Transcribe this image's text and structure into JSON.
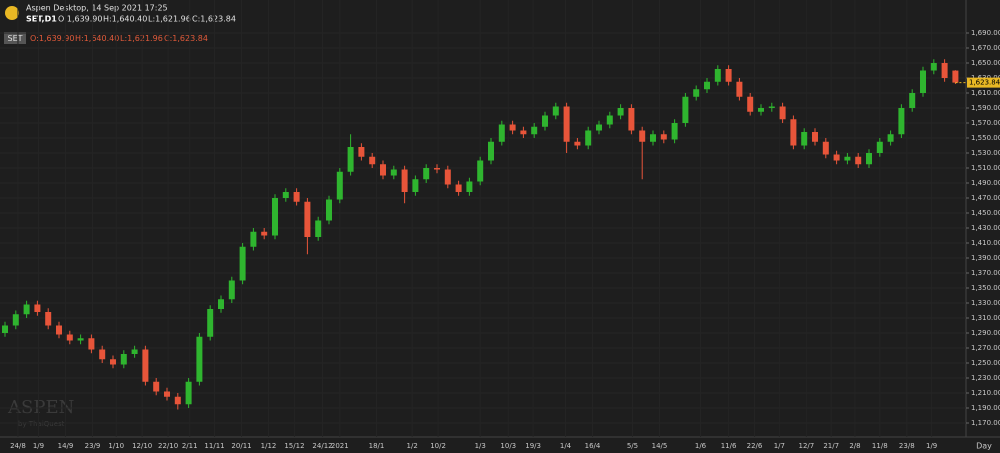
{
  "window": {
    "title": "Aspen Desktop, 14 Sep 2021 17:25",
    "symbol": "SET,D1",
    "badge": "SET",
    "ohlc": [
      "O:1,639.90",
      "H:1,640.40",
      "L:1,621.96",
      "C:1,623.84"
    ]
  },
  "watermark": {
    "brand": "ASPEN",
    "by": "by ThaiQuest"
  },
  "chart_data": {
    "type": "candlestick",
    "up_color": "#2fb52f",
    "down_color": "#e8553a",
    "grid": true,
    "open": [
      1290,
      1300,
      1315,
      1328,
      1318,
      1300,
      1288,
      1280,
      1283,
      1268,
      1255,
      1248,
      1262,
      1268,
      1225,
      1212,
      1205,
      1195,
      1225,
      1285,
      1322,
      1335,
      1360,
      1405,
      1425,
      1420,
      1470,
      1478,
      1465,
      1418,
      1440,
      1468,
      1505,
      1538,
      1525,
      1515,
      1500,
      1508,
      1478,
      1495,
      1510,
      1508,
      1488,
      1478,
      1492,
      1520,
      1545,
      1568,
      1560,
      1555,
      1565,
      1580,
      1592,
      1545,
      1540,
      1560,
      1568,
      1580,
      1590,
      1560,
      1545,
      1555,
      1548,
      1570,
      1605,
      1615,
      1625,
      1642,
      1625,
      1605,
      1585,
      1590,
      1592,
      1575,
      1540,
      1558,
      1545,
      1528,
      1520,
      1525,
      1515,
      1530,
      1545,
      1555,
      1590,
      1610,
      1640,
      1650,
      1639.9
    ],
    "high": [
      1305,
      1320,
      1333,
      1333,
      1323,
      1305,
      1293,
      1288,
      1288,
      1273,
      1260,
      1267,
      1273,
      1273,
      1230,
      1217,
      1210,
      1230,
      1290,
      1327,
      1340,
      1365,
      1410,
      1430,
      1430,
      1475,
      1483,
      1483,
      1470,
      1445,
      1473,
      1510,
      1555,
      1543,
      1530,
      1520,
      1513,
      1513,
      1500,
      1515,
      1515,
      1513,
      1493,
      1497,
      1525,
      1550,
      1573,
      1573,
      1565,
      1570,
      1585,
      1597,
      1597,
      1550,
      1565,
      1573,
      1585,
      1595,
      1595,
      1565,
      1560,
      1560,
      1575,
      1610,
      1620,
      1630,
      1647,
      1647,
      1630,
      1610,
      1595,
      1597,
      1597,
      1580,
      1563,
      1563,
      1550,
      1533,
      1530,
      1530,
      1535,
      1550,
      1560,
      1595,
      1615,
      1645,
      1655,
      1655,
      1640.4
    ],
    "low": [
      1285,
      1295,
      1310,
      1313,
      1295,
      1283,
      1275,
      1275,
      1263,
      1250,
      1243,
      1243,
      1257,
      1220,
      1207,
      1200,
      1188,
      1190,
      1220,
      1280,
      1317,
      1330,
      1355,
      1400,
      1415,
      1415,
      1465,
      1460,
      1395,
      1413,
      1435,
      1463,
      1500,
      1520,
      1510,
      1495,
      1495,
      1463,
      1473,
      1490,
      1503,
      1483,
      1473,
      1473,
      1487,
      1515,
      1540,
      1555,
      1550,
      1550,
      1560,
      1575,
      1530,
      1535,
      1535,
      1555,
      1563,
      1575,
      1555,
      1495,
      1540,
      1543,
      1543,
      1565,
      1600,
      1610,
      1620,
      1620,
      1600,
      1580,
      1580,
      1585,
      1570,
      1535,
      1535,
      1540,
      1523,
      1515,
      1515,
      1510,
      1510,
      1525,
      1540,
      1550,
      1585,
      1605,
      1635,
      1625,
      1621.96
    ],
    "close": [
      1300,
      1315,
      1328,
      1318,
      1300,
      1288,
      1280,
      1283,
      1268,
      1255,
      1248,
      1262,
      1268,
      1225,
      1212,
      1205,
      1195,
      1225,
      1285,
      1322,
      1335,
      1360,
      1405,
      1425,
      1420,
      1470,
      1478,
      1465,
      1418,
      1440,
      1468,
      1505,
      1538,
      1525,
      1515,
      1500,
      1508,
      1478,
      1495,
      1510,
      1508,
      1488,
      1478,
      1492,
      1520,
      1545,
      1568,
      1560,
      1555,
      1565,
      1580,
      1592,
      1545,
      1540,
      1560,
      1568,
      1580,
      1590,
      1560,
      1545,
      1555,
      1548,
      1570,
      1605,
      1615,
      1625,
      1642,
      1625,
      1605,
      1585,
      1590,
      1592,
      1575,
      1540,
      1558,
      1545,
      1528,
      1520,
      1525,
      1515,
      1530,
      1545,
      1555,
      1590,
      1610,
      1640,
      1650,
      1630,
      1623.84
    ],
    "last_price": {
      "value": 1623.84,
      "label": "1,623.84"
    },
    "ylim": [
      1160,
      1700
    ],
    "yticks": [
      {
        "value": 1170,
        "label": "1,170.00"
      },
      {
        "value": 1190,
        "label": "1,190.00"
      },
      {
        "value": 1210,
        "label": "1,210.00"
      },
      {
        "value": 1230,
        "label": "1,230.00"
      },
      {
        "value": 1250,
        "label": "1,250.00"
      },
      {
        "value": 1270,
        "label": "1,270.00"
      },
      {
        "value": 1290,
        "label": "1,290.00"
      },
      {
        "value": 1310,
        "label": "1,310.00"
      },
      {
        "value": 1330,
        "label": "1,330.00"
      },
      {
        "value": 1350,
        "label": "1,350.00"
      },
      {
        "value": 1370,
        "label": "1,370.00"
      },
      {
        "value": 1390,
        "label": "1,390.00"
      },
      {
        "value": 1410,
        "label": "1,410.00"
      },
      {
        "value": 1430,
        "label": "1,430.00"
      },
      {
        "value": 1450,
        "label": "1,450.00"
      },
      {
        "value": 1470,
        "label": "1,470.00"
      },
      {
        "value": 1490,
        "label": "1,490.00"
      },
      {
        "value": 1510,
        "label": "1,510.00"
      },
      {
        "value": 1530,
        "label": "1,530.00"
      },
      {
        "value": 1550,
        "label": "1,550.00"
      },
      {
        "value": 1570,
        "label": "1,570.00"
      },
      {
        "value": 1590,
        "label": "1,590.00"
      },
      {
        "value": 1610,
        "label": "1,610.00"
      },
      {
        "value": 1630,
        "label": "1,630.00"
      },
      {
        "value": 1650,
        "label": "1,650.00"
      },
      {
        "value": 1670,
        "label": "1,670.00"
      },
      {
        "value": 1690,
        "label": "1,690.00"
      }
    ],
    "xticks": [
      {
        "value": 1.2,
        "label": "24/8"
      },
      {
        "value": 3.1,
        "label": "1/9"
      },
      {
        "value": 5.6,
        "label": "14/9"
      },
      {
        "value": 8.1,
        "label": "23/9"
      },
      {
        "value": 10.3,
        "label": "1/10"
      },
      {
        "value": 12.7,
        "label": "12/10"
      },
      {
        "value": 15.1,
        "label": "22/10"
      },
      {
        "value": 17.1,
        "label": "2/11"
      },
      {
        "value": 19.4,
        "label": "11/11"
      },
      {
        "value": 21.9,
        "label": "20/11"
      },
      {
        "value": 24.4,
        "label": "1/12"
      },
      {
        "value": 26.8,
        "label": "15/12"
      },
      {
        "value": 29.4,
        "label": "24/12"
      },
      {
        "value": 31.0,
        "label": "2021"
      },
      {
        "value": 34.4,
        "label": "18/1"
      },
      {
        "value": 37.7,
        "label": "1/2"
      },
      {
        "value": 40.1,
        "label": "10/2"
      },
      {
        "value": 44.0,
        "label": "1/3"
      },
      {
        "value": 46.6,
        "label": "10/3"
      },
      {
        "value": 48.9,
        "label": "19/3"
      },
      {
        "value": 51.9,
        "label": "1/4"
      },
      {
        "value": 54.4,
        "label": "16/4"
      },
      {
        "value": 58.1,
        "label": "5/5"
      },
      {
        "value": 60.6,
        "label": "14/5"
      },
      {
        "value": 64.4,
        "label": "1/6"
      },
      {
        "value": 67.0,
        "label": "11/6"
      },
      {
        "value": 69.4,
        "label": "22/6"
      },
      {
        "value": 71.7,
        "label": "1/7"
      },
      {
        "value": 74.2,
        "label": "12/7"
      },
      {
        "value": 76.5,
        "label": "21/7"
      },
      {
        "value": 78.7,
        "label": "2/8"
      },
      {
        "value": 81.0,
        "label": "11/8"
      },
      {
        "value": 83.5,
        "label": "23/8"
      },
      {
        "value": 85.8,
        "label": "1/9"
      }
    ],
    "period": "Day"
  }
}
